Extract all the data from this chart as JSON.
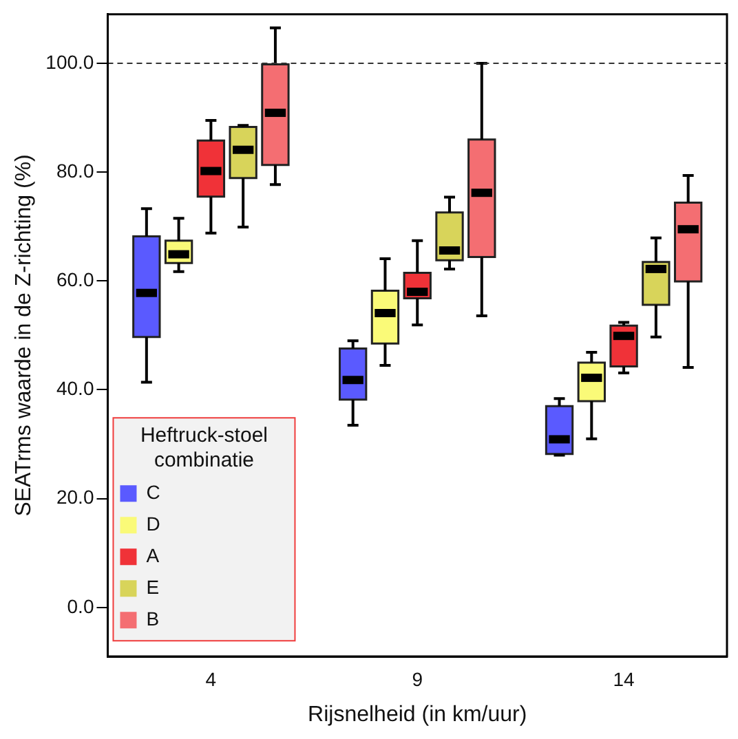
{
  "chart_data": {
    "type": "box",
    "xlabel": "Rijsnelheid (in km/uur)",
    "ylabel": "SEATrms waarde in de Z-richting (%)",
    "legend_title": "Heftruck-stoel combinatie",
    "legend": "bottom left",
    "grid": false,
    "categories": [
      "4",
      "9",
      "14"
    ],
    "ylim": [
      -9,
      109
    ],
    "yticks": [
      {
        "value": 0,
        "label": "0.0"
      },
      {
        "value": 20,
        "label": "20.0"
      },
      {
        "value": 40,
        "label": "40.0"
      },
      {
        "value": 60,
        "label": "60.0"
      },
      {
        "value": 80,
        "label": "80.0"
      },
      {
        "value": 100,
        "label": "100.0"
      }
    ],
    "ref_lines": [
      {
        "axis": "y",
        "value": 100,
        "line_style": "dashed",
        "color": "#333333"
      }
    ],
    "series": [
      {
        "name": "C",
        "color": "#5a5aff",
        "boxes": [
          {
            "low": 41.4,
            "q1": 49.7,
            "median": 57.8,
            "q3": 68.2,
            "high": 73.3
          },
          {
            "low": 33.5,
            "q1": 38.2,
            "median": 41.8,
            "q3": 47.6,
            "high": 49.0
          },
          {
            "low": 28.0,
            "q1": 28.2,
            "median": 30.9,
            "q3": 37.0,
            "high": 38.4
          }
        ]
      },
      {
        "name": "D",
        "color": "#fafa78",
        "boxes": [
          {
            "low": 61.7,
            "q1": 63.3,
            "median": 64.9,
            "q3": 67.4,
            "high": 71.5
          },
          {
            "low": 44.5,
            "q1": 48.5,
            "median": 54.1,
            "q3": 58.2,
            "high": 64.1
          },
          {
            "low": 31.0,
            "q1": 37.9,
            "median": 42.2,
            "q3": 45.0,
            "high": 46.9
          }
        ]
      },
      {
        "name": "A",
        "color": "#f03238",
        "boxes": [
          {
            "low": 68.8,
            "q1": 75.5,
            "median": 80.2,
            "q3": 85.8,
            "high": 89.5
          },
          {
            "low": 51.9,
            "q1": 56.8,
            "median": 58.0,
            "q3": 61.5,
            "high": 67.4
          },
          {
            "low": 43.1,
            "q1": 44.3,
            "median": 49.9,
            "q3": 51.8,
            "high": 52.4
          }
        ]
      },
      {
        "name": "E",
        "color": "#d8d45a",
        "boxes": [
          {
            "low": 69.9,
            "q1": 78.9,
            "median": 84.1,
            "q3": 88.3,
            "high": 88.6
          },
          {
            "low": 62.2,
            "q1": 63.8,
            "median": 65.6,
            "q3": 72.6,
            "high": 75.4
          },
          {
            "low": 49.7,
            "q1": 55.6,
            "median": 62.2,
            "q3": 63.5,
            "high": 67.9
          }
        ]
      },
      {
        "name": "B",
        "color": "#f46e72",
        "boxes": [
          {
            "low": 77.7,
            "q1": 81.3,
            "median": 90.9,
            "q3": 99.8,
            "high": 106.5
          },
          {
            "low": 53.6,
            "q1": 64.4,
            "median": 76.2,
            "q3": 86.0,
            "high": 100.0
          },
          {
            "low": 44.1,
            "q1": 59.9,
            "median": 69.5,
            "q3": 74.4,
            "high": 79.4
          }
        ]
      }
    ]
  }
}
